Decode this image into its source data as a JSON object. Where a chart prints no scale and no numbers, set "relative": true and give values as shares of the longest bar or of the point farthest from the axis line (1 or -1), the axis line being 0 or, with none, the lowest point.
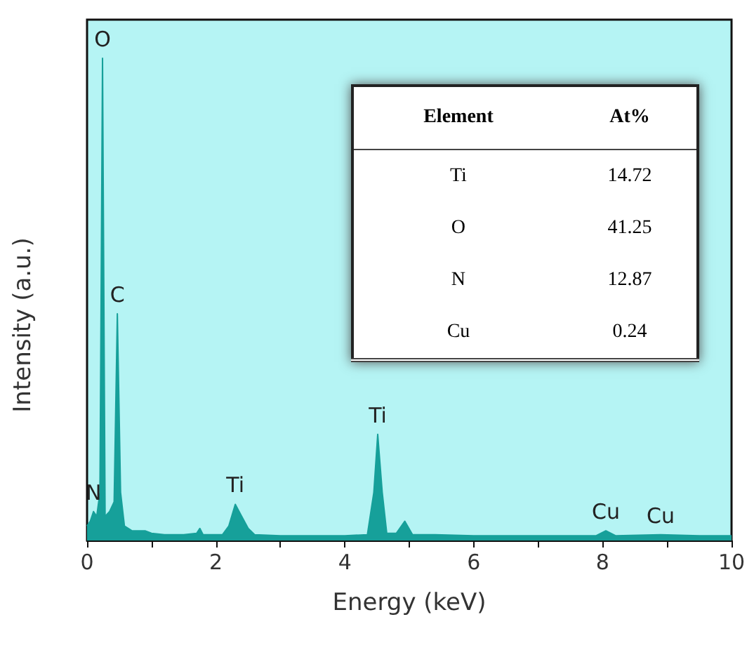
{
  "chart_data": {
    "type": "area",
    "relative": true,
    "xlabel": "Energy (keV)",
    "ylabel": "Intensity (a.u.)",
    "xlim": [
      0,
      10
    ],
    "xticks": [
      0,
      {
        "value": 1,
        "label": null
      },
      2,
      {
        "value": 3,
        "label": null
      },
      4,
      {
        "value": 5,
        "label": null
      },
      6,
      {
        "value": 7,
        "label": null
      },
      8,
      {
        "value": 9,
        "label": null
      },
      10
    ],
    "tick_labels": "x",
    "marker": "none",
    "series": [
      {
        "color": "#16a09a",
        "x": [
          0,
          0.05,
          0.1,
          0.15,
          0.2,
          0.24,
          0.28,
          0.35,
          0.42,
          0.47,
          0.52,
          0.58,
          0.7,
          0.9,
          1.0,
          1.2,
          1.5,
          1.7,
          1.75,
          1.8,
          2.1,
          2.2,
          2.3,
          2.4,
          2.5,
          2.6,
          3.0,
          3.5,
          4.0,
          4.35,
          4.45,
          4.51,
          4.58,
          4.65,
          4.8,
          4.93,
          5.05,
          5.4,
          6,
          7,
          7.9,
          8.05,
          8.2,
          8.9,
          9.5,
          10
        ],
        "values": [
          0.03,
          0.04,
          0.06,
          0.05,
          0.1,
          1,
          0.05,
          0.06,
          0.08,
          0.47,
          0.1,
          0.03,
          0.02,
          0.02,
          0.015,
          0.012,
          0.012,
          0.015,
          0.025,
          0.012,
          0.012,
          0.03,
          0.075,
          0.05,
          0.025,
          0.012,
          0.01,
          0.01,
          0.01,
          0.012,
          0.1,
          0.22,
          0.1,
          0.015,
          0.015,
          0.04,
          0.012,
          0.012,
          0.01,
          0.01,
          0.01,
          0.02,
          0.01,
          0.012,
          0.01,
          0.01
        ]
      }
    ],
    "annotations": [
      {
        "text": "O",
        "x": 0.24,
        "y": 1
      },
      {
        "text": "C",
        "x": 0.47,
        "y": 0.47
      },
      {
        "text": "N",
        "x": 0.1,
        "y": 0.06
      },
      {
        "text": "Ti",
        "x": 2.3,
        "y": 0.075
      },
      {
        "text": "Ti",
        "x": 4.51,
        "y": 0.22
      },
      {
        "text": "Cu",
        "x": 8.05,
        "y": 0.02
      },
      {
        "text": "Cu",
        "x": 8.9,
        "y": 0.012
      },
      "Element",
      "At%",
      "Ti",
      "14.72",
      "O",
      "41.25",
      "N",
      "12.87",
      "Cu",
      "0.24"
    ]
  }
}
